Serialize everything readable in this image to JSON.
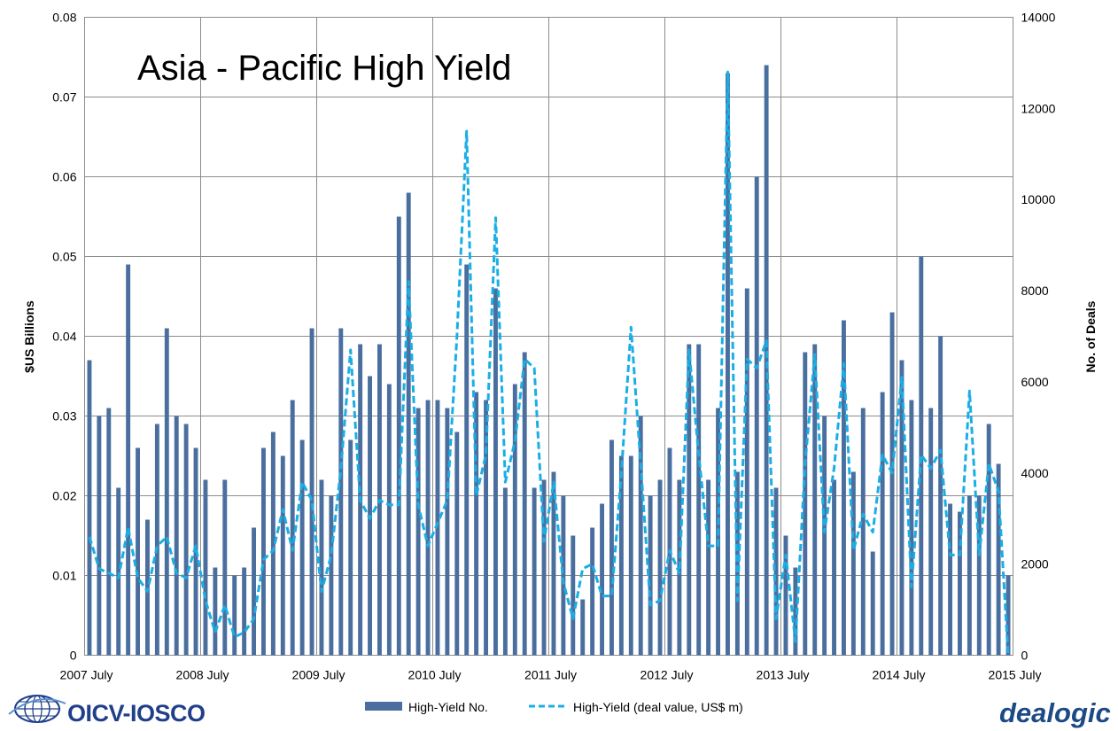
{
  "chart_data": {
    "type": "bar+line",
    "title": "Asia - Pacific High Yield",
    "ylabel_left": "$US Billions",
    "ylabel_right": "No. of Deals",
    "ylim_left": [
      0,
      0.08
    ],
    "ylim_right": [
      0,
      14000
    ],
    "yticks_left": [
      "0",
      "0.01",
      "0.02",
      "0.03",
      "0.04",
      "0.05",
      "0.06",
      "0.07",
      "0.08"
    ],
    "yticks_right": [
      "0",
      "2000",
      "4000",
      "6000",
      "8000",
      "10000",
      "12000",
      "14000"
    ],
    "xticks": [
      "2007 July",
      "2008 July",
      "2009 July",
      "2010 July",
      "2011 July",
      "2012 July",
      "2013 July",
      "2014 July",
      "2015 July"
    ],
    "grid": true,
    "legend_position": "bottom",
    "colors": {
      "bars": "#4a6f9f",
      "line": "#1aaee5",
      "grid": "#8c8c8c"
    },
    "series": [
      {
        "name": "High-Yield No.",
        "type": "bar",
        "axis": "left",
        "values": [
          0.037,
          0.03,
          0.031,
          0.021,
          0.049,
          0.026,
          0.017,
          0.029,
          0.041,
          0.03,
          0.029,
          0.026,
          0.022,
          0.011,
          0.022,
          0.01,
          0.011,
          0.016,
          0.026,
          0.028,
          0.025,
          0.032,
          0.027,
          0.041,
          0.022,
          0.02,
          0.041,
          0.027,
          0.039,
          0.035,
          0.039,
          0.034,
          0.055,
          0.058,
          0.031,
          0.032,
          0.032,
          0.031,
          0.028,
          0.049,
          0.033,
          0.032,
          0.046,
          0.021,
          0.034,
          0.038,
          0.021,
          0.022,
          0.023,
          0.02,
          0.015,
          0.007,
          0.016,
          0.019,
          0.027,
          0.025,
          0.025,
          0.03,
          0.02,
          0.022,
          0.026,
          0.022,
          0.039,
          0.039,
          0.022,
          0.031,
          0.073,
          0.023,
          0.046,
          0.06,
          0.074,
          0.021,
          0.015,
          0.011,
          0.038,
          0.039,
          0.03,
          0.022,
          0.042,
          0.023,
          0.031,
          0.013,
          0.033,
          0.043,
          0.037,
          0.032,
          0.05,
          0.031,
          0.04,
          0.019,
          0.018,
          0.02,
          0.02,
          0.029,
          0.024,
          0.01
        ]
      },
      {
        "name": "High-Yield (deal value, US$ m)",
        "type": "line",
        "axis": "right",
        "style": "dashed",
        "values": [
          2600,
          1900,
          1800,
          1700,
          2800,
          1700,
          1400,
          2400,
          2600,
          1800,
          1700,
          2400,
          1200,
          500,
          1100,
          400,
          500,
          800,
          2100,
          2300,
          3200,
          2300,
          3800,
          3400,
          1400,
          2200,
          4100,
          6700,
          3400,
          3000,
          3400,
          3300,
          3300,
          8200,
          3300,
          2400,
          2900,
          3400,
          7000,
          11500,
          3500,
          4400,
          9600,
          3800,
          4700,
          6500,
          6300,
          2500,
          3800,
          1600,
          800,
          1900,
          2000,
          1300,
          1300,
          4000,
          7200,
          4200,
          1100,
          1200,
          2300,
          1800,
          6700,
          4400,
          2400,
          2400,
          12800,
          1200,
          6500,
          6300,
          6900,
          800,
          2200,
          300,
          4200,
          6600,
          2700,
          4100,
          6400,
          2300,
          3100,
          2700,
          4400,
          4000,
          6100,
          1500,
          4400,
          4100,
          4500,
          2200,
          2200,
          5800,
          2200,
          4200,
          3600,
          0
        ]
      }
    ]
  },
  "logos": {
    "left": "OICV-IOSCO",
    "right": "dealogic"
  },
  "icons": {
    "left_logo": "globe-icon"
  }
}
